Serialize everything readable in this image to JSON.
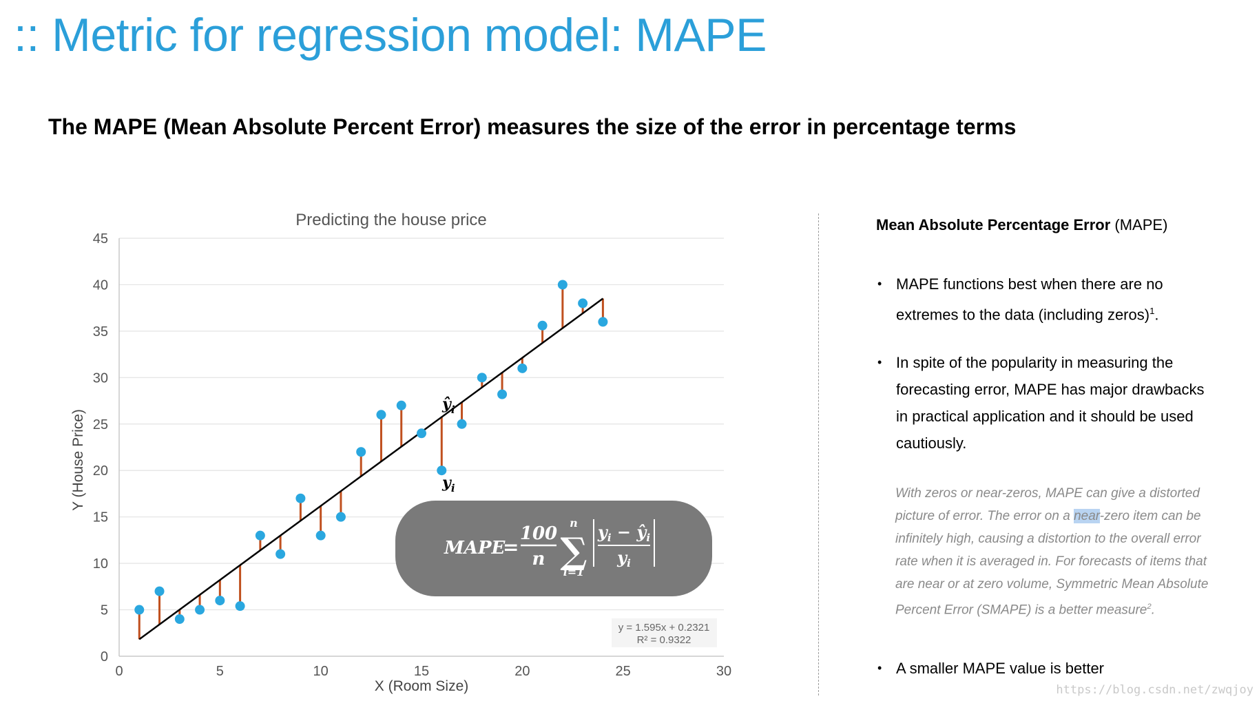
{
  "slide": {
    "title": ":: Metric for regression model: MAPE",
    "subtitle": "The MAPE (Mean Absolute Percent Error) measures the size of the error in percentage terms"
  },
  "sidebar": {
    "title_bold": "Mean Absolute Percentage Error",
    "title_rest": " (MAPE)",
    "bullet1": "MAPE functions best when there are no extremes to the data (including zeros)",
    "bullet1_sup": "1",
    "bullet1_end": ".",
    "bullet2": "In spite of the popularity in measuring the forecasting error, MAPE has major drawbacks in practical application and  it should be used cautiously.",
    "note_a": "With zeros or near-zeros, MAPE can give a distorted picture of error. The error on a ",
    "note_hl": "near",
    "note_b": "-zero item can be infinitely high, causing a distortion to the overall error rate when it is averaged in. For forecasts of items that are near or at zero volume, Symmetric Mean Absolute Percent Error (SMAPE) is a better measure",
    "note_sup": "2",
    "note_end": ".",
    "bullet3": "A smaller MAPE value is better"
  },
  "watermark": "https://blog.csdn.net/zwqjoy",
  "formula": {
    "lhs": "MAPE",
    "eq": "=",
    "frac_num": "100",
    "frac_den": "n",
    "sum_top": "n",
    "sum_bottom": "i=1",
    "sum_symbol": "∑",
    "inner_num": "y",
    "inner_num_hat": "ŷ",
    "inner_den": "y",
    "sub": "i",
    "minus": "−"
  },
  "colors": {
    "title": "#2b9fd9",
    "point": "#2aa7df",
    "residual": "#c0501f",
    "fit_line": "#000000",
    "formula_box": "#7a7a7a",
    "grid": "#e3e3e3"
  },
  "chart_data": {
    "type": "scatter",
    "title": "Predicting the house price",
    "xlabel": "X (Room Size)",
    "ylabel": "Y (House Price)",
    "xlim": [
      0,
      30
    ],
    "ylim": [
      0,
      45
    ],
    "x_ticks": [
      0,
      5,
      10,
      15,
      20,
      25,
      30
    ],
    "y_ticks": [
      0,
      5,
      10,
      15,
      20,
      25,
      30,
      35,
      40,
      45
    ],
    "grid": "horizontal",
    "x": [
      1,
      2,
      3,
      4,
      5,
      6,
      7,
      8,
      9,
      10,
      11,
      12,
      13,
      14,
      15,
      16,
      17,
      18,
      19,
      20,
      21,
      22,
      23,
      24
    ],
    "y": [
      5,
      7,
      4,
      5,
      6,
      5.4,
      13,
      11,
      17,
      13,
      15,
      22,
      26,
      27,
      24,
      20,
      25,
      30,
      28.2,
      31,
      35.6,
      40,
      38,
      36
    ],
    "trendline": {
      "slope": 1.595,
      "intercept": 0.2321,
      "x_range": [
        1,
        24
      ]
    },
    "trendline_label_1": "y = 1.595x + 0.2321",
    "trendline_label_2": "R² = 0.9322",
    "annotation_hat": "ŷ",
    "annotation_y": "y",
    "annotation_sub": "i",
    "annotation_x": 16,
    "residual_lines": true
  }
}
